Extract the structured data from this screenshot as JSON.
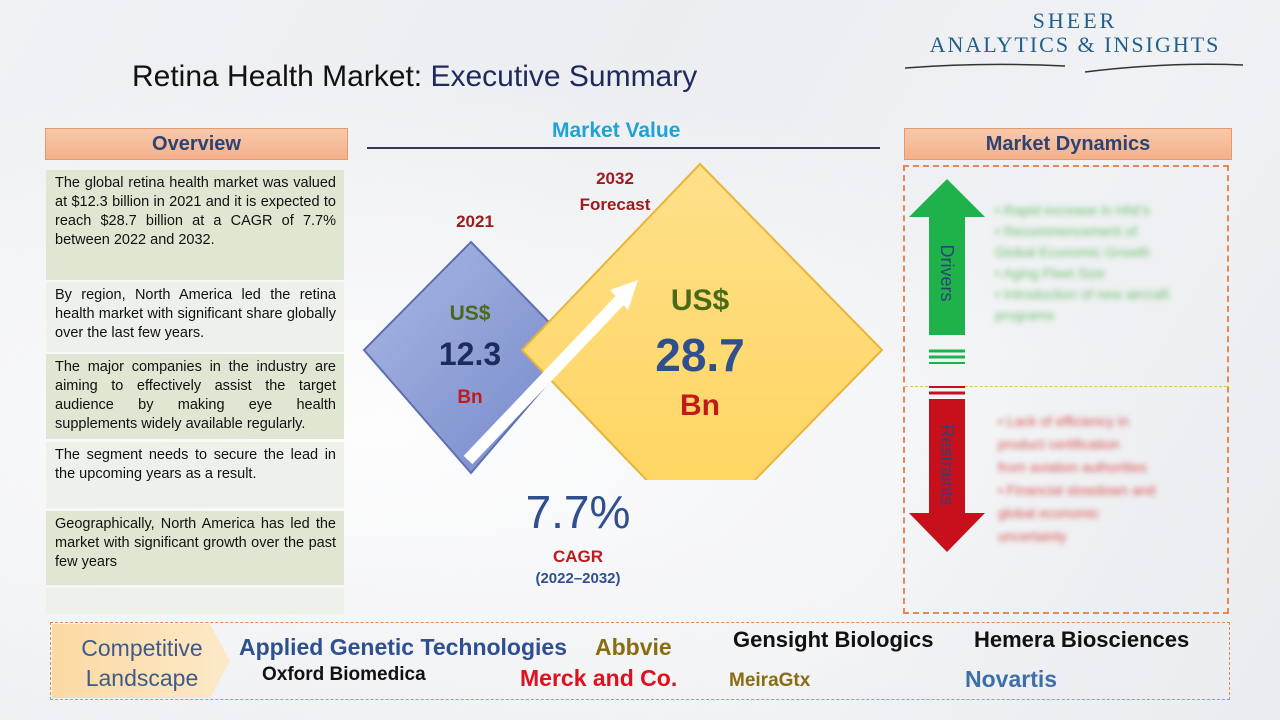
{
  "brand": {
    "line1": "SHEER",
    "line2": "ANALYTICS & INSIGHTS"
  },
  "title": {
    "main": "Retina Health Market:",
    "sub": "Executive Summary"
  },
  "overview": {
    "header": "Overview",
    "items": [
      "The global retina health market was valued at $12.3 billion in 2021 and it is expected to reach $28.7 billion at a CAGR of 7.7% between 2022 and 2032.",
      "By region, North America led the retina health market with significant share globally over the last few years.",
      "The major companies in the industry are aiming to effectively assist the target audience by making eye health supplements widely available regularly.",
      "The segment needs to secure the lead in the upcoming years as a result.",
      "Geographically, North America has led the market with significant growth over the past few years",
      ""
    ]
  },
  "market_value": {
    "header": "Market Value",
    "year_2021": "2021",
    "year_2032": "2032",
    "forecast": "Forecast",
    "left": {
      "currency": "US$",
      "value": "12.3",
      "unit": "Bn"
    },
    "right": {
      "currency": "US$",
      "value": "28.7",
      "unit": "Bn"
    },
    "cagr_value": "7.7%",
    "cagr_label": "CAGR",
    "cagr_period": "(2022–2032)"
  },
  "market_dynamics": {
    "header": "Market Dynamics",
    "drivers_label": "Drivers",
    "restraints_label": "Restraints",
    "drivers": [
      "• Rapid increase in HNI's",
      "• Recommencement of",
      "   Global Economic Growth",
      "• Aging Fleet Size",
      "• Introduction of new aircraft",
      "   programs"
    ],
    "restraints": [
      "• Lack of efficiency in",
      "   product certification",
      "   from aviation authorities",
      "• Financial slowdown and",
      "   global economic",
      "   uncertainty"
    ]
  },
  "competitive": {
    "label_line1": "Competitive",
    "label_line2": "Landscape",
    "companies": [
      "Applied Genetic Technologies",
      "Abbvie",
      "Gensight Biologics",
      "Hemera Biosciences",
      "Oxford Biomedica",
      "Merck and Co.",
      "MeiraGtx",
      "Novartis"
    ]
  },
  "colors": {
    "accent_blue": "#1fa3d6",
    "title_navy": "#1f2a5c",
    "header_orange": "#f4b08a",
    "overview_green": "#dfe7d3",
    "diamond_blue": "#8ea2d8",
    "diamond_yellow": "#ffd867",
    "driver_green": "#1fb24a",
    "restraint_red": "#c8101c",
    "merck_red": "#e0101e",
    "abbvie_olive": "#8a6d12"
  }
}
